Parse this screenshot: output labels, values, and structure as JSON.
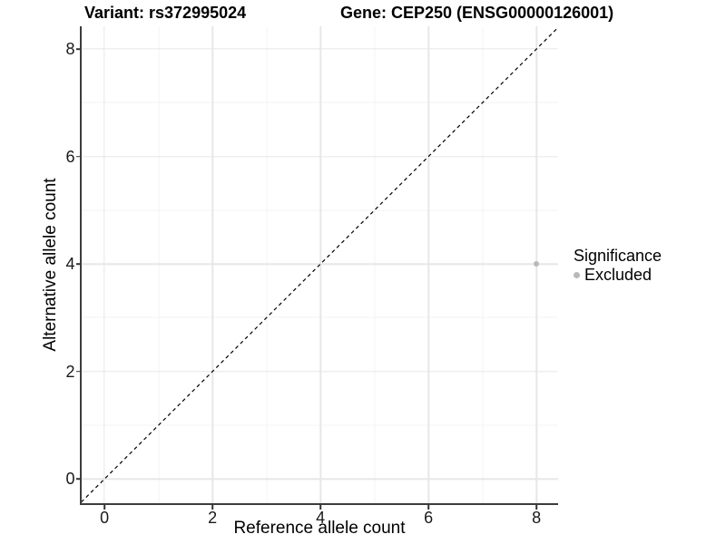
{
  "chart_data": {
    "type": "scatter",
    "titles": {
      "variant": "Variant: rs372995024",
      "gene": "Gene: CEP250 (ENSG00000126001)"
    },
    "xlabel": "Reference allele count",
    "ylabel": "Alternative allele count",
    "xlim": [
      -0.43,
      8.4
    ],
    "ylim": [
      -0.45,
      8.43
    ],
    "x_ticks": [
      0,
      2,
      4,
      6,
      8
    ],
    "y_ticks": [
      0,
      2,
      4,
      6,
      8
    ],
    "grid": {
      "major_color": "#e7e7e7",
      "minor_color": "#f3f3f3",
      "minor_at": "midpoints"
    },
    "reference_line": {
      "type": "identity",
      "slope": 1,
      "intercept": 0,
      "style": "dashed",
      "color": "#000000"
    },
    "points": [
      {
        "x": 8,
        "y": 4,
        "series": "Excluded",
        "color": "#b9b9b9"
      }
    ],
    "legend": {
      "title": "Significance",
      "position": "right",
      "items": [
        {
          "label": "Excluded",
          "color": "#b9b9b9"
        }
      ]
    }
  }
}
